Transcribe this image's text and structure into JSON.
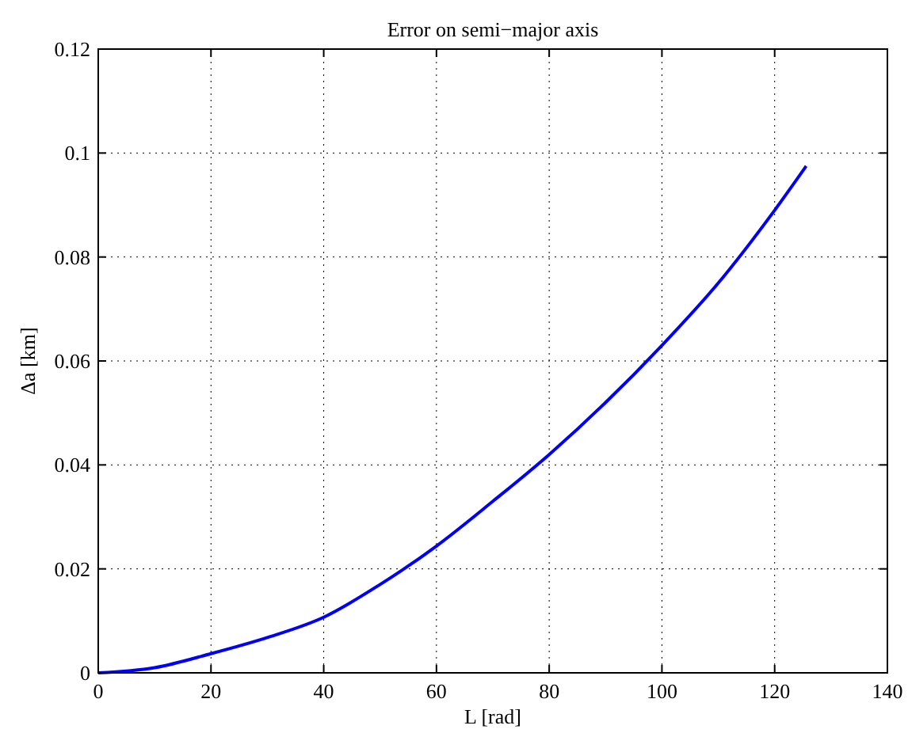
{
  "chart_data": {
    "type": "line",
    "title": "Error on semi−major axis",
    "xlabel": "L [rad]",
    "ylabel": "Δa [km]",
    "x": [
      0,
      10,
      20,
      30,
      40,
      50,
      60,
      70,
      80,
      90,
      100,
      110,
      120,
      125.6
    ],
    "series": [
      {
        "color": "#0000ff",
        "values": [
          0,
          0.001,
          0.0037,
          0.0068,
          0.0107,
          0.017,
          0.0244,
          0.033,
          0.042,
          0.052,
          0.063,
          0.075,
          0.089,
          0.0975
        ]
      }
    ],
    "xlim": [
      0,
      140
    ],
    "xticks": [
      0,
      20,
      40,
      60,
      80,
      100,
      120,
      140
    ],
    "ylim": [
      0,
      0.12
    ],
    "yticks": [
      0,
      0.02,
      0.04,
      0.06,
      0.08,
      0.1,
      0.12
    ],
    "grid": true,
    "marker": "none",
    "line_style": "solid"
  }
}
